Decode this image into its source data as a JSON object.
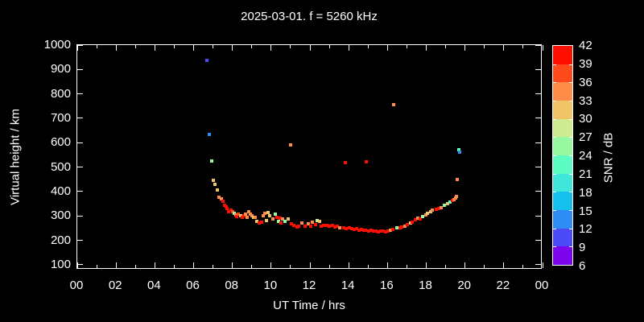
{
  "window": {
    "background": "#000000",
    "foreground": "#ffffff"
  },
  "chart_data": {
    "type": "scatter",
    "title": "2025-03-01. f = 5260 kHz",
    "xlabel": "UT Time / hrs",
    "ylabel": "Virtual height / km",
    "colorbar_label": "SNR / dB",
    "xlim": [
      0,
      24
    ],
    "ylim": [
      80,
      1000
    ],
    "grid": false,
    "x_ticks": [
      {
        "t": 0,
        "label": "00"
      },
      {
        "t": 2,
        "label": "02"
      },
      {
        "t": 4,
        "label": "04"
      },
      {
        "t": 6,
        "label": "06"
      },
      {
        "t": 8,
        "label": "08"
      },
      {
        "t": 10,
        "label": "10"
      },
      {
        "t": 12,
        "label": "12"
      },
      {
        "t": 14,
        "label": "14"
      },
      {
        "t": 16,
        "label": "16"
      },
      {
        "t": 18,
        "label": "18"
      },
      {
        "t": 20,
        "label": "20"
      },
      {
        "t": 22,
        "label": "22"
      },
      {
        "t": 24,
        "label": "00"
      }
    ],
    "x_minor_step": 1,
    "y_ticks": [
      100,
      200,
      300,
      400,
      500,
      600,
      700,
      800,
      900,
      1000
    ],
    "colorbar": {
      "max": 42,
      "min": 6,
      "step": 3,
      "tick_labels": [
        42,
        39,
        36,
        33,
        30,
        27,
        24,
        21,
        18,
        15,
        12,
        9,
        6
      ],
      "palette_top_to_bottom": [
        "#ff0f00",
        "#ff4a1c",
        "#ff8c48",
        "#f0c468",
        "#cfeb92",
        "#98f8a2",
        "#5dfcc2",
        "#3fe6d9",
        "#15c1ec",
        "#2e8cf4",
        "#4c49f6",
        "#7c05ee"
      ]
    },
    "points_format": [
      "ut_hrs",
      "virtual_height_km",
      "snr_db"
    ],
    "points": [
      [
        6.67,
        937,
        10.5
      ],
      [
        6.82,
        634,
        13.5
      ],
      [
        6.92,
        525,
        25.5
      ],
      [
        11.0,
        591,
        34.5
      ],
      [
        13.83,
        519,
        40.5
      ],
      [
        14.92,
        521,
        40.5
      ],
      [
        16.33,
        756,
        34.5
      ],
      [
        19.58,
        449,
        34.5
      ],
      [
        19.67,
        571,
        22.5
      ],
      [
        19.72,
        561,
        13.5
      ],
      [
        7.0,
        445,
        31.5
      ],
      [
        7.08,
        431,
        31.5
      ],
      [
        7.21,
        407,
        31.5
      ],
      [
        7.29,
        377,
        34.5
      ],
      [
        7.42,
        370,
        34.5
      ],
      [
        7.5,
        360,
        40.5
      ],
      [
        7.58,
        344,
        40.5
      ],
      [
        7.67,
        337,
        40.5
      ],
      [
        7.71,
        330,
        40.5
      ],
      [
        7.79,
        318,
        40.5
      ],
      [
        7.92,
        325,
        40.5
      ],
      [
        8.0,
        318,
        37.5
      ],
      [
        8.08,
        311,
        25.5
      ],
      [
        8.17,
        304,
        34.5
      ],
      [
        8.21,
        298,
        40.5
      ],
      [
        8.29,
        308,
        37.5
      ],
      [
        8.42,
        301,
        31.5
      ],
      [
        8.5,
        295,
        40.5
      ],
      [
        8.58,
        301,
        40.5
      ],
      [
        8.67,
        308,
        34.5
      ],
      [
        8.75,
        295,
        34.5
      ],
      [
        8.83,
        318,
        34.5
      ],
      [
        8.92,
        308,
        34.5
      ],
      [
        9.0,
        301,
        34.5
      ],
      [
        9.08,
        295,
        31.5
      ],
      [
        9.17,
        295,
        34.5
      ],
      [
        9.25,
        278,
        31.5
      ],
      [
        9.38,
        272,
        40.5
      ],
      [
        9.5,
        274,
        40.5
      ],
      [
        9.58,
        301,
        34.5
      ],
      [
        9.67,
        311,
        34.5
      ],
      [
        9.75,
        281,
        31.5
      ],
      [
        9.83,
        314,
        31.5
      ],
      [
        9.92,
        301,
        31.5
      ],
      [
        10.08,
        288,
        34.5
      ],
      [
        10.21,
        308,
        25.5
      ],
      [
        10.29,
        295,
        40.5
      ],
      [
        10.38,
        278,
        25.5
      ],
      [
        10.46,
        291,
        40.5
      ],
      [
        10.5,
        272,
        40.5
      ],
      [
        10.58,
        288,
        34.5
      ],
      [
        10.71,
        278,
        25.5
      ],
      [
        10.88,
        288,
        31.5
      ],
      [
        11.04,
        269,
        40.5
      ],
      [
        11.17,
        262,
        40.5
      ],
      [
        11.33,
        255,
        40.5
      ],
      [
        11.42,
        258,
        40.5
      ],
      [
        11.58,
        272,
        34.5
      ],
      [
        11.75,
        259,
        40.5
      ],
      [
        11.92,
        269,
        34.5
      ],
      [
        12.04,
        259,
        40.5
      ],
      [
        12.13,
        275,
        34.5
      ],
      [
        12.29,
        265,
        40.5
      ],
      [
        12.38,
        281,
        28.5
      ],
      [
        12.5,
        278,
        31.5
      ],
      [
        12.58,
        259,
        40.5
      ],
      [
        12.71,
        262,
        40.5
      ],
      [
        12.88,
        262,
        40.5
      ],
      [
        13.0,
        259,
        40.5
      ],
      [
        13.17,
        262,
        40.5
      ],
      [
        13.29,
        255,
        40.5
      ],
      [
        13.42,
        259,
        40.5
      ],
      [
        13.54,
        252,
        34.5
      ],
      [
        13.75,
        252,
        40.5
      ],
      [
        13.88,
        248,
        40.5
      ],
      [
        14.04,
        252,
        40.5
      ],
      [
        14.17,
        248,
        40.5
      ],
      [
        14.29,
        245,
        40.5
      ],
      [
        14.42,
        248,
        40.5
      ],
      [
        14.54,
        242,
        40.5
      ],
      [
        14.67,
        245,
        40.5
      ],
      [
        14.79,
        240,
        40.5
      ],
      [
        14.88,
        242,
        40.5
      ],
      [
        15.04,
        238,
        40.5
      ],
      [
        15.17,
        240,
        40.5
      ],
      [
        15.29,
        237,
        40.5
      ],
      [
        15.42,
        238,
        40.5
      ],
      [
        15.54,
        235,
        40.5
      ],
      [
        15.67,
        237,
        40.5
      ],
      [
        15.79,
        238,
        40.5
      ],
      [
        15.92,
        235,
        40.5
      ],
      [
        16.04,
        238,
        40.5
      ],
      [
        16.17,
        242,
        34.5
      ],
      [
        16.29,
        245,
        40.5
      ],
      [
        16.5,
        250,
        25.5
      ],
      [
        16.63,
        252,
        40.5
      ],
      [
        16.75,
        255,
        40.5
      ],
      [
        16.92,
        258,
        34.5
      ],
      [
        17.04,
        265,
        40.5
      ],
      [
        17.17,
        272,
        31.5
      ],
      [
        17.29,
        275,
        40.5
      ],
      [
        17.46,
        285,
        40.5
      ],
      [
        17.58,
        291,
        34.5
      ],
      [
        17.67,
        288,
        40.5
      ],
      [
        17.83,
        298,
        25.5
      ],
      [
        17.96,
        304,
        34.5
      ],
      [
        18.08,
        311,
        31.5
      ],
      [
        18.21,
        317,
        31.5
      ],
      [
        18.33,
        324,
        34.5
      ],
      [
        18.5,
        327,
        40.5
      ],
      [
        18.63,
        330,
        40.5
      ],
      [
        18.75,
        334,
        34.5
      ],
      [
        18.92,
        344,
        25.5
      ],
      [
        19.08,
        350,
        31.5
      ],
      [
        19.21,
        357,
        22.5
      ],
      [
        19.33,
        362,
        40.5
      ],
      [
        19.42,
        367,
        34.5
      ],
      [
        19.5,
        374,
        34.5
      ],
      [
        19.54,
        381,
        34.5
      ]
    ]
  }
}
